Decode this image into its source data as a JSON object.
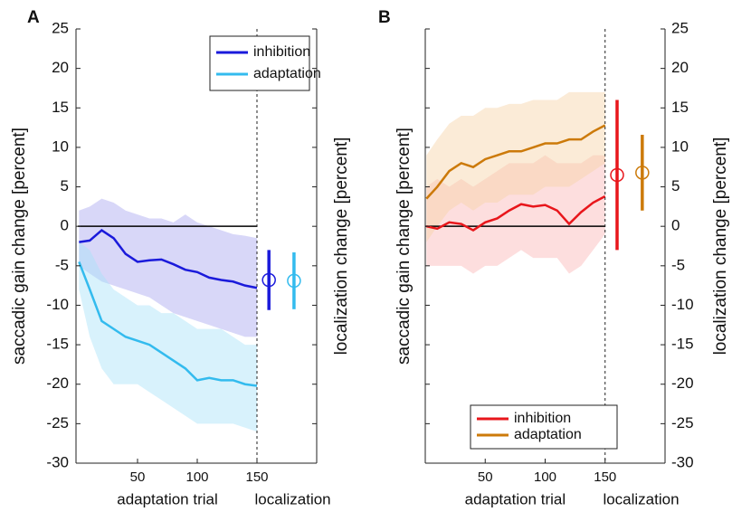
{
  "chart_data": [
    {
      "type": "line",
      "panel_label": "A",
      "xlabel": "adaptation trial",
      "xlabel2": "localization",
      "ylabel": "saccadic gain change [percent]",
      "y2label": "localization change [percent]",
      "xlim": [
        0,
        200
      ],
      "xticks": [
        50,
        100,
        150
      ],
      "divider": 150,
      "ylim": [
        -30,
        25
      ],
      "yticks": [
        -30,
        -25,
        -20,
        -15,
        -10,
        -5,
        0,
        5,
        10,
        15,
        20,
        25
      ],
      "ytick_side": "left",
      "zero_line": true,
      "legend": "upper right",
      "x": [
        1,
        10,
        20,
        30,
        40,
        50,
        60,
        70,
        80,
        90,
        100,
        110,
        120,
        130,
        140,
        150
      ],
      "series": [
        {
          "name": "inhibition",
          "color": "#1a1adb",
          "band_color": "#a9a6f0",
          "values": [
            -2,
            -1.8,
            -0.5,
            -1.5,
            -3.5,
            -4.5,
            -4.3,
            -4.2,
            -4.8,
            -5.5,
            -5.8,
            -6.5,
            -6.8,
            -7,
            -7.5,
            -7.8
          ],
          "upper": [
            2,
            2.5,
            3.5,
            3,
            2,
            1.5,
            1,
            1,
            0.5,
            1.5,
            0.5,
            0,
            -0.5,
            -1,
            -1.2,
            -1.5
          ],
          "lower": [
            -5,
            -6,
            -7,
            -7.5,
            -8,
            -8.5,
            -9,
            -10,
            -11,
            -11.5,
            -12,
            -12.5,
            -13,
            -13.5,
            -14,
            -14
          ],
          "localization": -6.8,
          "localization_error": 3.8
        },
        {
          "name": "adaptation",
          "color": "#33bbee",
          "band_color": "#a8e2f8",
          "values": [
            -4.5,
            -8,
            -12,
            -13,
            -14,
            -14.5,
            -15,
            -16,
            -17,
            -18,
            -19.5,
            -19.2,
            -19.5,
            -19.5,
            -20,
            -20.2
          ],
          "upper": [
            -2,
            -3,
            -6,
            -8,
            -9,
            -10,
            -10,
            -11,
            -11,
            -12,
            -13,
            -13,
            -13,
            -14,
            -15,
            -15
          ],
          "lower": [
            -8,
            -14,
            -18,
            -20,
            -20,
            -20,
            -21,
            -22,
            -23,
            -24,
            -25,
            -25,
            -25,
            -25,
            -25.5,
            -26
          ],
          "localization": -6.9,
          "localization_error": 3.6
        }
      ]
    },
    {
      "type": "line",
      "panel_label": "B",
      "xlabel": "adaptation trial",
      "xlabel2": "localization",
      "ylabel": "saccadic gain change [percent]",
      "y2label": "localization change [percent]",
      "xlim": [
        0,
        200
      ],
      "xticks": [
        50,
        100,
        150
      ],
      "divider": 150,
      "ylim": [
        -30,
        25
      ],
      "yticks": [
        -30,
        -25,
        -20,
        -15,
        -10,
        -5,
        0,
        5,
        10,
        15,
        20,
        25
      ],
      "ytick_side": "right",
      "zero_line": true,
      "legend": "lower center",
      "x": [
        1,
        10,
        20,
        30,
        40,
        50,
        60,
        70,
        80,
        90,
        100,
        110,
        120,
        130,
        140,
        150
      ],
      "series": [
        {
          "name": "inhibition",
          "color": "#e8161b",
          "band_color": "#fbb6b6",
          "values": [
            0,
            -0.3,
            0.5,
            0.3,
            -0.5,
            0.5,
            1,
            2,
            2.8,
            2.5,
            2.7,
            2,
            0.3,
            1.8,
            3,
            3.8
          ],
          "upper": [
            5,
            6,
            5,
            6,
            5,
            6,
            7,
            8,
            8,
            8,
            9,
            8,
            8,
            8,
            9,
            9
          ],
          "lower": [
            -5,
            -5,
            -5,
            -5,
            -6,
            -5,
            -5,
            -4,
            -3,
            -4,
            -4,
            -4,
            -6,
            -5,
            -3,
            -1
          ],
          "localization": 6.5,
          "localization_error": 9.5
        },
        {
          "name": "adaptation",
          "color": "#cc7a0a",
          "band_color": "#f6d3a6",
          "values": [
            3.5,
            5,
            7,
            8,
            7.5,
            8.5,
            9,
            9.5,
            9.5,
            10,
            10.5,
            10.5,
            11,
            11,
            12,
            12.8
          ],
          "upper": [
            9,
            11,
            13,
            14,
            14,
            15,
            15,
            15.5,
            15.5,
            16,
            16,
            16,
            17,
            17,
            17,
            17
          ],
          "lower": [
            -2,
            0,
            2,
            3,
            2,
            3,
            3,
            4,
            4,
            4,
            5,
            5,
            5,
            6,
            7,
            8
          ],
          "localization": 6.8,
          "localization_error": 4.8
        }
      ]
    }
  ]
}
